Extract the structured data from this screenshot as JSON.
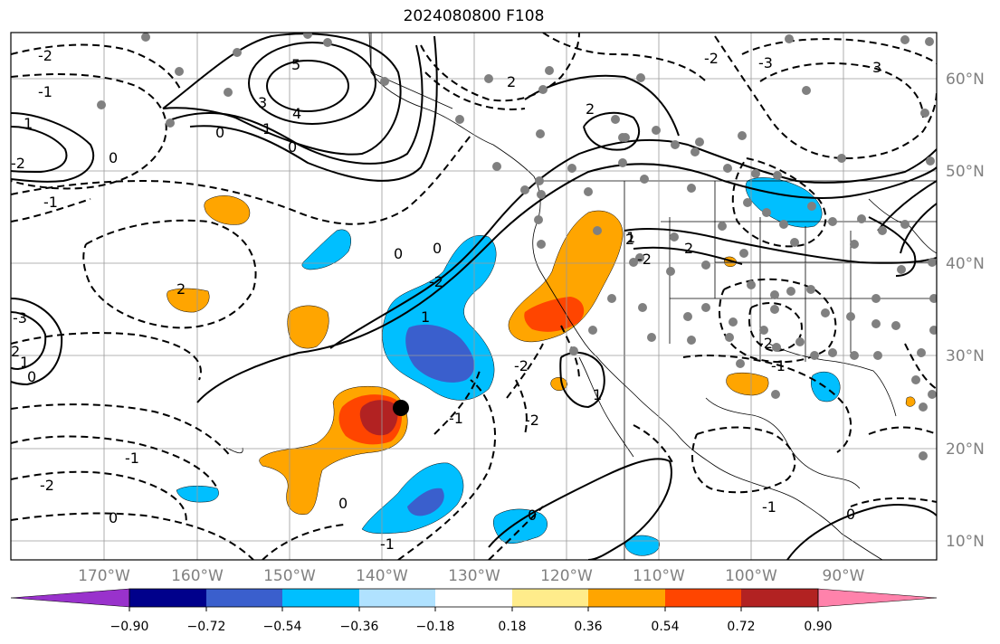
{
  "title": "2024080800 F108",
  "longitude_labels": [
    "170°W",
    "160°W",
    "150°W",
    "140°W",
    "130°W",
    "120°W",
    "110°W",
    "100°W",
    "90°W"
  ],
  "latitude_labels": [
    "60°N",
    "50°N",
    "40°N",
    "30°N",
    "20°N",
    "10°N"
  ],
  "colorbar": {
    "tick_labels": [
      "−0.90",
      "−0.72",
      "−0.54",
      "−0.36",
      "−0.18",
      "0.18",
      "0.36",
      "0.54",
      "0.72",
      "0.90"
    ],
    "colors": [
      "#9932cc",
      "#00008b",
      "#3a5fcd",
      "#00bfff",
      "#b0e2ff",
      "#ffffff",
      "#ffec8b",
      "#ffa500",
      "#ff4500",
      "#b22222",
      "#ff82ab"
    ]
  },
  "contour_labels": [
    "5",
    "4",
    "3",
    "1",
    "0",
    "0",
    "-1",
    "-2",
    "-1",
    "1",
    "-2",
    "2",
    "-3",
    "2",
    "1",
    "0",
    "0",
    "-2",
    "-1",
    "1",
    "-2",
    "-1",
    "-1",
    "-2",
    "0",
    "-2",
    "2",
    "-2",
    "2",
    "0",
    "1",
    "2",
    "2",
    "0",
    "-3",
    "-2",
    "-2",
    "1",
    "-1",
    "-2",
    "0",
    "3",
    "0",
    "-1",
    "0"
  ],
  "marker_label": "storm-center"
}
